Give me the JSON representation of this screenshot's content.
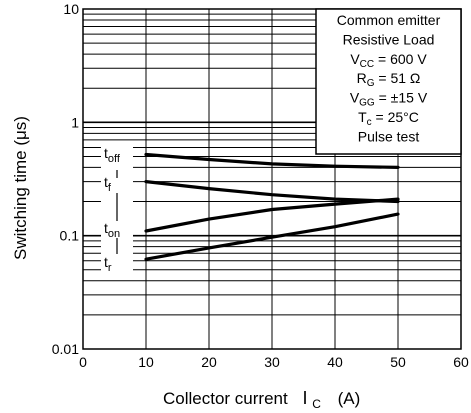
{
  "chart_data": {
    "type": "line",
    "ylabel": "Switching time   (μs)",
    "xlabel_main": "Collector current",
    "xlabel_symbol": "I",
    "xlabel_subscript": "C",
    "xlabel_unit": "(A)",
    "x_scale": "linear",
    "y_scale": "log",
    "xlim": [
      0,
      60
    ],
    "ylim": [
      0.01,
      10
    ],
    "x_ticks": [
      0,
      10,
      20,
      30,
      40,
      50,
      60
    ],
    "x_tick_labels": [
      "0",
      "10",
      "20",
      "30",
      "40",
      "50",
      "60"
    ],
    "y_ticks": [
      0.01,
      0.1,
      1,
      10
    ],
    "y_tick_labels": [
      "0.01",
      "0.1",
      "1",
      "10"
    ],
    "grid": true,
    "series": [
      {
        "name": "t_off",
        "label_main": "t",
        "label_sub": "off",
        "x": [
          10,
          20,
          30,
          40,
          50
        ],
        "y": [
          0.52,
          0.47,
          0.43,
          0.41,
          0.4
        ]
      },
      {
        "name": "t_f",
        "label_main": "t",
        "label_sub": "f",
        "x": [
          10,
          20,
          30,
          40,
          50
        ],
        "y": [
          0.3,
          0.26,
          0.23,
          0.21,
          0.2
        ]
      },
      {
        "name": "t_on",
        "label_main": "t",
        "label_sub": "on",
        "x": [
          10,
          20,
          30,
          40,
          50
        ],
        "y": [
          0.11,
          0.14,
          0.17,
          0.19,
          0.21
        ]
      },
      {
        "name": "t_r",
        "label_main": "t",
        "label_sub": "r",
        "x": [
          10,
          20,
          30,
          40,
          50
        ],
        "y": [
          0.062,
          0.078,
          0.097,
          0.12,
          0.155
        ]
      }
    ],
    "conditions": [
      {
        "main": "Common emitter",
        "sub": "",
        "rest": ""
      },
      {
        "main": "Resistive Load",
        "sub": "",
        "rest": ""
      },
      {
        "main": "V",
        "sub": "CC",
        "rest": " = 600 V"
      },
      {
        "main": "R",
        "sub": "G",
        "rest": " = 51 Ω"
      },
      {
        "main": "V",
        "sub": "GG",
        "rest": " = ±15 V"
      },
      {
        "main": "T",
        "sub": "c",
        "rest": " = 25°C"
      },
      {
        "main": "Pulse test",
        "sub": "",
        "rest": ""
      }
    ],
    "legend_position": "top-right",
    "line_color": "#000000",
    "background": "#ffffff"
  }
}
